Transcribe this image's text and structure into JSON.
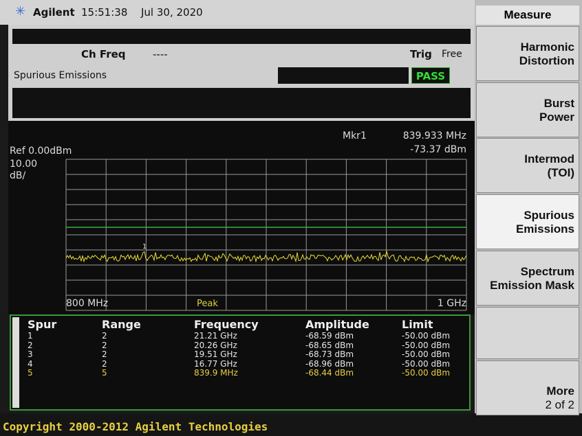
{
  "header": {
    "brand": "Agilent",
    "time": "15:51:38",
    "date": "Jul 30, 2020"
  },
  "status": {
    "ch_freq_label": "Ch Freq",
    "ch_freq_value": "----",
    "trig_label": "Trig",
    "trig_value": "Free",
    "measurement": "Spurious Emissions",
    "result": "PASS"
  },
  "display": {
    "marker_label": "Mkr1",
    "marker_freq": "839.933 MHz",
    "marker_amp": "-73.37 dBm",
    "ref": "Ref 0.00dBm",
    "scale": "10.00",
    "scale_unit": "dB/",
    "marker_number": "1",
    "start": "800 MHz",
    "detector": "Peak",
    "stop": "1 GHz"
  },
  "table": {
    "headers": [
      "Spur",
      "Range",
      "Frequency",
      "Amplitude",
      "Limit"
    ],
    "rows": [
      [
        "1",
        "2",
        "21.21 GHz",
        "-68.59 dBm",
        "-50.00 dBm"
      ],
      [
        "2",
        "2",
        "20.26 GHz",
        "-68.65 dBm",
        "-50.00 dBm"
      ],
      [
        "3",
        "2",
        "19.51 GHz",
        "-68.73 dBm",
        "-50.00 dBm"
      ],
      [
        "4",
        "2",
        "16.77 GHz",
        "-68.96 dBm",
        "-50.00 dBm"
      ],
      [
        "5",
        "5",
        "839.9 MHz",
        "-68.44 dBm",
        "-50.00 dBm"
      ]
    ]
  },
  "softkeys": {
    "title": "Measure",
    "keys": [
      [
        "Harmonic",
        "Distortion"
      ],
      [
        "Burst",
        "Power"
      ],
      [
        "Intermod",
        "(TOI)"
      ],
      [
        "Spurious",
        "Emissions"
      ],
      [
        "Spectrum",
        "Emission Mask"
      ],
      [
        "More",
        "2 of 2"
      ]
    ]
  },
  "footer": "Copyright 2000-2012 Agilent Technologies"
}
